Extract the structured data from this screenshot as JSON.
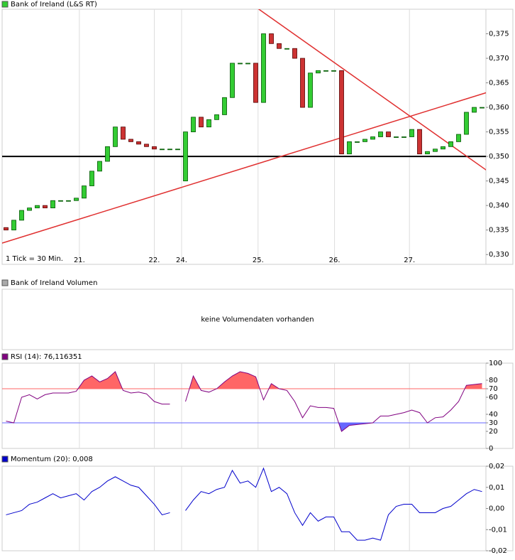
{
  "chart_data": [
    {
      "type": "candlestick",
      "title": "Bank of Ireland (L&S RT)",
      "legend_color": "#33cc33",
      "note": "1 Tick = 30 Min.",
      "x": [
        0,
        1,
        2,
        3,
        4,
        5,
        6,
        7,
        8,
        9,
        10,
        11,
        12,
        13,
        14,
        15,
        16,
        17,
        18,
        19,
        20,
        21,
        22,
        23,
        24,
        25,
        26,
        27,
        28,
        29,
        30,
        31,
        32,
        33,
        34,
        35,
        36,
        37,
        38,
        39,
        40,
        41,
        42,
        43,
        44,
        45,
        46,
        47,
        48,
        49,
        50,
        51,
        52,
        53,
        54,
        55,
        56,
        57,
        58,
        59,
        60,
        61
      ],
      "open": [
        0.3355,
        0.335,
        0.337,
        0.339,
        0.3395,
        0.34,
        0.3395,
        0.341,
        0.341,
        0.341,
        0.3415,
        0.344,
        0.347,
        0.349,
        0.352,
        0.356,
        0.3535,
        0.353,
        0.3525,
        0.352,
        0.3515,
        0.3515,
        0.3515,
        0.345,
        0.355,
        0.358,
        0.356,
        0.3575,
        0.3585,
        0.362,
        0.369,
        0.369,
        0.369,
        0.361,
        0.375,
        0.373,
        0.372,
        0.372,
        0.37,
        0.36,
        0.367,
        0.3675,
        0.3675,
        0.3675,
        0.3505,
        0.353,
        0.353,
        0.3535,
        0.354,
        0.355,
        0.354,
        0.354,
        0.354,
        0.3555,
        0.3505,
        0.351,
        0.3515,
        0.352,
        0.353,
        0.3545,
        0.359,
        0.36
      ],
      "close": [
        0.335,
        0.337,
        0.339,
        0.3395,
        0.34,
        0.3395,
        0.341,
        0.341,
        0.341,
        0.3415,
        0.344,
        0.347,
        0.349,
        0.352,
        0.356,
        0.3535,
        0.353,
        0.3525,
        0.352,
        0.3515,
        0.3515,
        0.3515,
        0.3515,
        0.355,
        0.358,
        0.356,
        0.3575,
        0.3585,
        0.362,
        0.369,
        0.369,
        0.369,
        0.361,
        0.375,
        0.373,
        0.372,
        0.372,
        0.37,
        0.36,
        0.367,
        0.3675,
        0.3675,
        0.3675,
        0.3505,
        0.353,
        0.353,
        0.3535,
        0.354,
        0.355,
        0.354,
        0.354,
        0.354,
        0.3555,
        0.3505,
        0.351,
        0.3515,
        0.352,
        0.353,
        0.3545,
        0.359,
        0.36,
        0.36
      ],
      "up_color": "#33cc33",
      "down_color": "#cc3333",
      "xlim": [
        -0.5,
        61.5
      ],
      "xticks": [
        {
          "value": 9.4,
          "label": "21."
        },
        {
          "value": 19.0,
          "label": "22."
        },
        {
          "value": 22.5,
          "label": "24."
        },
        {
          "value": 32.3,
          "label": "25."
        },
        {
          "value": 42.1,
          "label": "26."
        },
        {
          "value": 51.7,
          "label": "27."
        }
      ],
      "ylim": [
        0.328,
        0.38
      ],
      "yticks": [
        {
          "value": 0.33,
          "label": "0,330"
        },
        {
          "value": 0.335,
          "label": "0,335"
        },
        {
          "value": 0.34,
          "label": "0,340"
        },
        {
          "value": 0.345,
          "label": "0,345"
        },
        {
          "value": 0.35,
          "label": "0,350"
        },
        {
          "value": 0.355,
          "label": "0,355"
        },
        {
          "value": 0.36,
          "label": "0,360"
        },
        {
          "value": 0.365,
          "label": "0,365"
        },
        {
          "value": 0.37,
          "label": "0,370"
        },
        {
          "value": 0.375,
          "label": "0,375"
        }
      ],
      "hline": {
        "value": 0.35,
        "color": "#000000"
      },
      "trendlines": [
        {
          "x": [
            32.05,
            65.2
          ],
          "y": [
            0.3804,
            0.3431
          ],
          "color": "#e03030"
        },
        {
          "x": [
            -0.77,
            65.2
          ],
          "y": [
            0.3322,
            0.3648
          ],
          "color": "#e03030"
        }
      ]
    },
    {
      "type": "volume",
      "title": "Bank of Ireland Volumen",
      "legend_color": "#aaaaaa",
      "message": "keine Volumendaten vorhanden"
    },
    {
      "type": "line",
      "title": "RSI (14): 76,116351",
      "legend_color": "#800080",
      "color": "#800080",
      "values": [
        32,
        30,
        60,
        63,
        58,
        63,
        65,
        65,
        65,
        67,
        80,
        85,
        78,
        82,
        90,
        68,
        65,
        66,
        64,
        55,
        52,
        52,
        null,
        55,
        85,
        68,
        66,
        70,
        78,
        85,
        90,
        88,
        84,
        57,
        76,
        70,
        68,
        55,
        36,
        50,
        48,
        48,
        47,
        20,
        27,
        28,
        29,
        30,
        38,
        38,
        40,
        42,
        45,
        42,
        30,
        36,
        37,
        45,
        55,
        74,
        75,
        76
      ],
      "ylim": [
        0,
        100
      ],
      "yticks": [
        0,
        20,
        30,
        40,
        60,
        70,
        80,
        100
      ],
      "levels": [
        {
          "value": 70,
          "color": "#ff6666",
          "side": "above"
        },
        {
          "value": 30,
          "color": "#6666ff",
          "side": "below"
        }
      ]
    },
    {
      "type": "line",
      "title": "Momentum (20): 0,008",
      "legend_color": "#0000cc",
      "color": "#0000cc",
      "values": [
        -0.003,
        -0.002,
        -0.001,
        0.002,
        0.003,
        0.005,
        0.007,
        0.005,
        0.006,
        0.007,
        0.004,
        0.008,
        0.01,
        0.013,
        0.015,
        0.013,
        0.011,
        0.01,
        0.006,
        0.002,
        -0.003,
        -0.002,
        null,
        -0.001,
        0.004,
        0.008,
        0.007,
        0.009,
        0.01,
        0.018,
        0.012,
        0.013,
        0.01,
        0.019,
        0.008,
        0.01,
        0.007,
        -0.002,
        -0.008,
        -0.002,
        -0.006,
        -0.004,
        -0.004,
        -0.011,
        -0.011,
        -0.015,
        -0.015,
        -0.014,
        -0.015,
        -0.003,
        0.001,
        0.002,
        0.002,
        -0.002,
        -0.002,
        -0.002,
        0.0,
        0.001,
        0.004,
        0.007,
        0.009,
        0.008
      ],
      "ylim": [
        -0.02,
        0.02
      ],
      "yticks": [
        {
          "value": -0.02,
          "label": "-0,02"
        },
        {
          "value": -0.01,
          "label": "-0,01"
        },
        {
          "value": 0,
          "label": "0,00"
        },
        {
          "value": 0.01,
          "label": "0,01"
        },
        {
          "value": 0.02,
          "label": "0,02"
        }
      ]
    }
  ]
}
